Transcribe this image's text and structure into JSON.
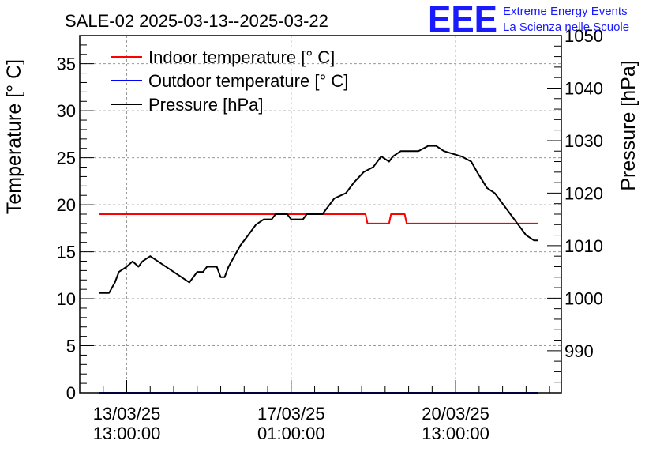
{
  "chart_data": {
    "type": "line",
    "title": "SALE-02 2025-03-13--2025-03-22",
    "logo": {
      "mark": "EEE",
      "line1": "Extreme Energy Events",
      "line2": "La Scienza nelle Scuole",
      "color": "#1a1aff"
    },
    "xlabel": "",
    "x_unit": "hours since 2025-03-12 13:00:00",
    "xlim": [
      0,
      246
    ],
    "x_ticks": [
      {
        "x": 24,
        "line1": "13/03/25",
        "line2": "13:00:00"
      },
      {
        "x": 108,
        "line1": "17/03/25",
        "line2": "01:00:00"
      },
      {
        "x": 192,
        "line1": "20/03/25",
        "line2": "13:00:00"
      }
    ],
    "y_left": {
      "label": "Temperature [° C]",
      "lim": [
        0,
        38
      ],
      "ticks": [
        0,
        5,
        10,
        15,
        20,
        25,
        30,
        35
      ]
    },
    "y_right": {
      "label": "Pressure [hPa]",
      "lim": [
        982,
        1050
      ],
      "ticks": [
        990,
        1000,
        1010,
        1020,
        1030,
        1040,
        1050
      ]
    },
    "grid": true,
    "legend": "top-left",
    "series": [
      {
        "name": "Indoor temperature [° C]",
        "color": "#ff0000",
        "axis": "left",
        "points": [
          [
            10,
            19
          ],
          [
            146,
            19
          ],
          [
            147,
            18
          ],
          [
            158,
            18
          ],
          [
            159,
            19
          ],
          [
            166,
            19
          ],
          [
            167,
            18
          ],
          [
            234,
            18
          ]
        ]
      },
      {
        "name": "Outdoor temperature [° C]",
        "color": "#0000ff",
        "axis": "left",
        "points": [
          [
            10,
            0
          ],
          [
            234,
            0
          ]
        ]
      },
      {
        "name": "Pressure [hPa]",
        "color": "#000000",
        "axis": "right",
        "points": [
          [
            10,
            1001
          ],
          [
            15,
            1001
          ],
          [
            18,
            1003
          ],
          [
            20,
            1005
          ],
          [
            22,
            1005.5
          ],
          [
            24,
            1006
          ],
          [
            27,
            1007
          ],
          [
            30,
            1006
          ],
          [
            32,
            1007
          ],
          [
            36,
            1008
          ],
          [
            40,
            1007
          ],
          [
            56,
            1003
          ],
          [
            58,
            1004
          ],
          [
            60,
            1005
          ],
          [
            63,
            1005
          ],
          [
            65,
            1006
          ],
          [
            70,
            1006
          ],
          [
            72,
            1004
          ],
          [
            74,
            1004
          ],
          [
            76,
            1006
          ],
          [
            79,
            1008
          ],
          [
            82,
            1010
          ],
          [
            86,
            1012
          ],
          [
            90,
            1014
          ],
          [
            94,
            1015
          ],
          [
            98,
            1015
          ],
          [
            100,
            1016
          ],
          [
            106,
            1016
          ],
          [
            108,
            1015
          ],
          [
            114,
            1015
          ],
          [
            116,
            1016
          ],
          [
            124,
            1016
          ],
          [
            126,
            1017
          ],
          [
            130,
            1019
          ],
          [
            136,
            1020
          ],
          [
            140,
            1022
          ],
          [
            145,
            1024
          ],
          [
            150,
            1025
          ],
          [
            154,
            1027
          ],
          [
            158,
            1026
          ],
          [
            160,
            1027
          ],
          [
            164,
            1028
          ],
          [
            173,
            1028
          ],
          [
            178,
            1029
          ],
          [
            182,
            1029
          ],
          [
            186,
            1028
          ],
          [
            195,
            1027
          ],
          [
            200,
            1026
          ],
          [
            203,
            1024
          ],
          [
            208,
            1021
          ],
          [
            212,
            1020
          ],
          [
            216,
            1018
          ],
          [
            220,
            1016
          ],
          [
            224,
            1014
          ],
          [
            228,
            1012
          ],
          [
            232,
            1011
          ],
          [
            234,
            1011
          ]
        ]
      }
    ]
  }
}
